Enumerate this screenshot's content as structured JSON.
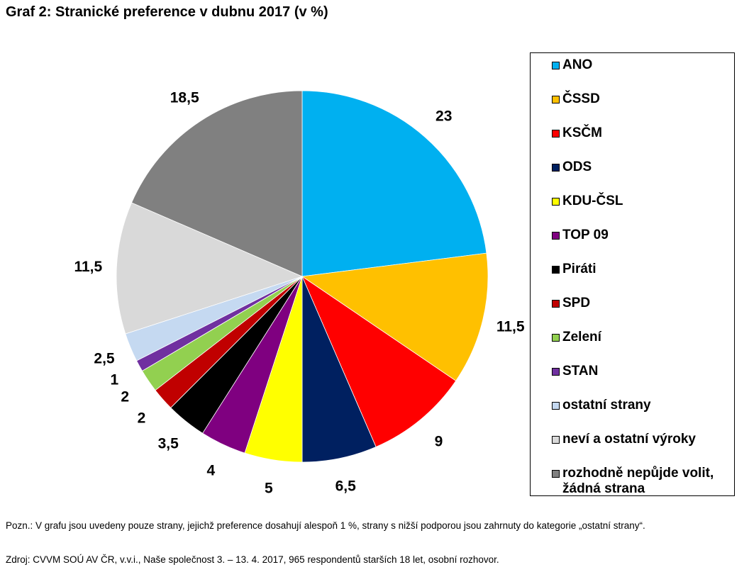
{
  "title": "Graf 2: Stranické preference v dubnu 2017 (v %)",
  "chart_data": {
    "type": "pie",
    "title": "Graf 2: Stranické preference v dubnu 2017 (v %)",
    "slices": [
      {
        "label": "ANO",
        "value": 23,
        "value_label": "23",
        "color": "#00b0f0"
      },
      {
        "label": "ČSSD",
        "value": 11.5,
        "value_label": "11,5",
        "color": "#ffc000"
      },
      {
        "label": "KSČM",
        "value": 9,
        "value_label": "9",
        "color": "#ff0000"
      },
      {
        "label": "ODS",
        "value": 6.5,
        "value_label": "6,5",
        "color": "#002060"
      },
      {
        "label": "KDU-ČSL",
        "value": 5,
        "value_label": "5",
        "color": "#ffff00"
      },
      {
        "label": "TOP 09",
        "value": 4,
        "value_label": "4",
        "color": "#7f0080"
      },
      {
        "label": "Piráti",
        "value": 3.5,
        "value_label": "3,5",
        "color": "#000000"
      },
      {
        "label": "SPD",
        "value": 2,
        "value_label": "2",
        "color": "#c00000"
      },
      {
        "label": "Zelení",
        "value": 2,
        "value_label": "2",
        "color": "#92d050"
      },
      {
        "label": "STAN",
        "value": 1,
        "value_label": "1",
        "color": "#7030a0"
      },
      {
        "label": "ostatní strany",
        "value": 2.5,
        "value_label": "2,5",
        "color": "#c5d9f1"
      },
      {
        "label": "neví a ostatní výroky",
        "value": 11.5,
        "value_label": "11,5",
        "color": "#d9d9d9"
      },
      {
        "label": "rozhodně nepůjde volit, žádná strana",
        "value": 18.5,
        "value_label": "18,5",
        "color": "#808080"
      }
    ],
    "legend_position": "right"
  },
  "legend": [
    {
      "lines": [
        "ANO"
      ]
    },
    {
      "lines": [
        "ČSSD"
      ]
    },
    {
      "lines": [
        "KSČM"
      ]
    },
    {
      "lines": [
        "ODS"
      ]
    },
    {
      "lines": [
        "KDU-ČSL"
      ]
    },
    {
      "lines": [
        "TOP 09"
      ]
    },
    {
      "lines": [
        "Piráti"
      ]
    },
    {
      "lines": [
        "SPD"
      ]
    },
    {
      "lines": [
        "Zelení"
      ]
    },
    {
      "lines": [
        "STAN"
      ]
    },
    {
      "lines": [
        "ostatní strany"
      ]
    },
    {
      "lines": [
        "neví a ostatní výroky"
      ]
    },
    {
      "lines": [
        "rozhodně nepůjde volit,",
        "žádná strana"
      ]
    }
  ],
  "notes": {
    "note": "Pozn.: V grafu jsou uvedeny pouze strany, jejichž preference dosahují alespoň 1 %, strany s nižší podporou jsou zahrnuty do kategorie „ostatní strany“.",
    "source": "Zdroj: CVVM SOÚ AV ČR, v.v.i., Naše společnost 3. – 13. 4. 2017, 965 respondentů starších 18 let, osobní rozhovor."
  }
}
